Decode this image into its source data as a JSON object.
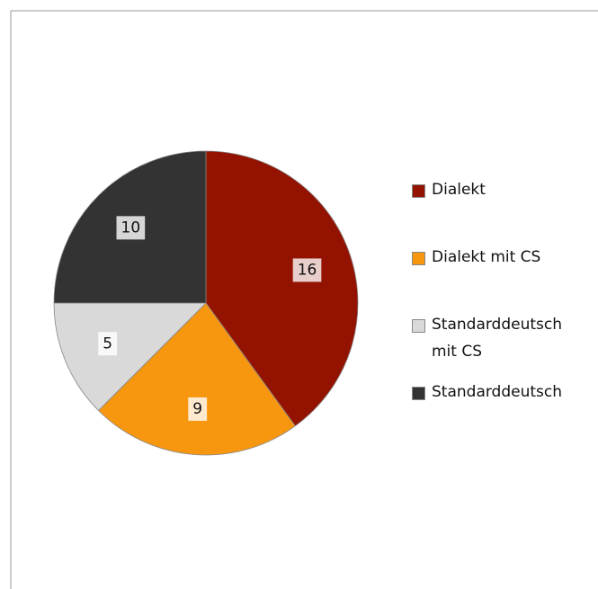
{
  "chart_data": {
    "type": "pie",
    "categories": [
      "Dialekt",
      "Dialekt mit CS",
      "Standarddeutsch mit CS",
      "Standarddeutsch"
    ],
    "values": [
      16,
      9,
      5,
      10
    ],
    "colors": [
      "#931300",
      "#f7960f",
      "#d9d9d9",
      "#333333"
    ],
    "legend": "right"
  }
}
